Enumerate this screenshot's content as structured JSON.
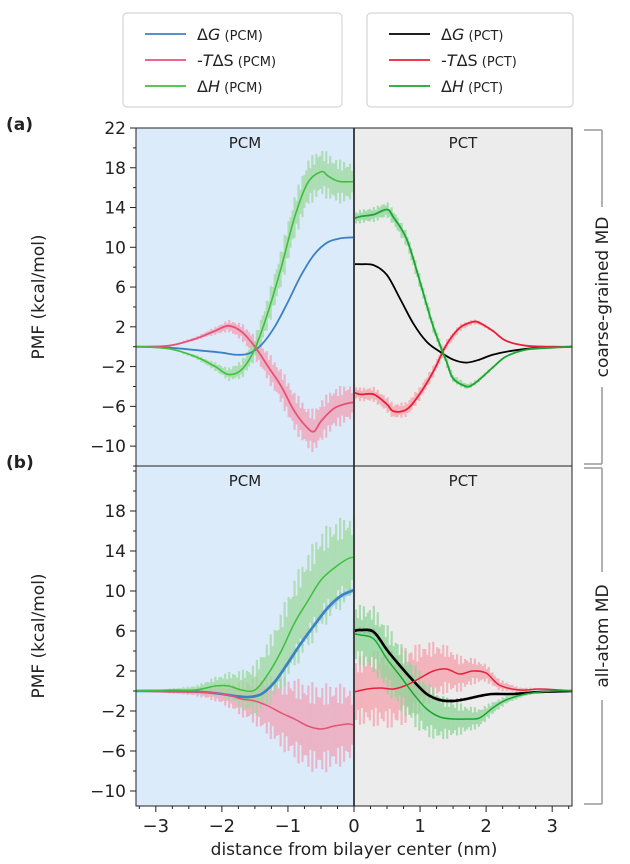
{
  "legends": [
    {
      "entries": [
        {
          "pre": "Δ",
          "sym": "G",
          "tag": " (PCM)",
          "color": "#3b82c4"
        },
        {
          "pre": "-",
          "sym": "T",
          "post": "ΔS",
          "tag": " (PCM)",
          "color": "#e8507a"
        },
        {
          "pre": "Δ",
          "sym": "H",
          "tag": " (PCM)",
          "color": "#3fbf3f"
        }
      ]
    },
    {
      "entries": [
        {
          "pre": "Δ",
          "sym": "G",
          "tag": " (PCT)",
          "color": "#000000"
        },
        {
          "pre": "-",
          "sym": "T",
          "post": "ΔS",
          "tag": " (PCT)",
          "color": "#e8203a"
        },
        {
          "pre": "Δ",
          "sym": "H",
          "tag": " (PCT)",
          "color": "#1aa631"
        }
      ]
    }
  ],
  "chart_data": [
    {
      "type": "line",
      "panel_label": "(a)",
      "right_label": "coarse-grained MD",
      "left_region_label": "PCM",
      "right_region_label": "PCT",
      "left_region_color": "#dcebfa",
      "right_region_color": "#ececec",
      "ylabel": "PMF (kcal/mol)",
      "ylim": [
        -12,
        22
      ],
      "yticks": [
        -10,
        -6,
        -2,
        2,
        6,
        10,
        14,
        18,
        22
      ],
      "xlim": [
        -3.3,
        3.3
      ],
      "series": [
        {
          "id": "dG_PCM",
          "color": "#3b82c4",
          "width": 1.8,
          "x": [
            -3.3,
            -2.8,
            -2.3,
            -2.0,
            -1.8,
            -1.6,
            -1.4,
            -1.2,
            -1.0,
            -0.8,
            -0.6,
            -0.4,
            -0.2,
            0.0
          ],
          "y": [
            0,
            -0.1,
            -0.4,
            -0.6,
            -0.8,
            -0.7,
            0.2,
            2.0,
            4.5,
            7.2,
            9.3,
            10.5,
            10.9,
            11.0
          ]
        },
        {
          "id": "mTdS_PCM",
          "color": "#e8507a",
          "width": 1.8,
          "err": 2.2,
          "errcolor": "#f2a3b6",
          "x": [
            -3.3,
            -2.8,
            -2.4,
            -2.1,
            -1.9,
            -1.7,
            -1.5,
            -1.3,
            -1.1,
            -0.9,
            -0.7,
            -0.6,
            -0.5,
            -0.3,
            -0.1,
            0.0
          ],
          "y": [
            0,
            0.1,
            0.8,
            1.6,
            2.1,
            1.5,
            0.0,
            -2.0,
            -4.0,
            -6.5,
            -8.2,
            -8.5,
            -7.5,
            -6.2,
            -5.7,
            -5.6
          ]
        },
        {
          "id": "dH_PCM",
          "color": "#3fbf3f",
          "width": 1.6,
          "err": 2.4,
          "errcolor": "#9ed99e",
          "x": [
            -3.3,
            -2.8,
            -2.4,
            -2.1,
            -1.9,
            -1.7,
            -1.5,
            -1.3,
            -1.1,
            -0.9,
            -0.7,
            -0.5,
            -0.4,
            -0.3,
            -0.2,
            0.0
          ],
          "y": [
            0,
            -0.2,
            -1.0,
            -2.0,
            -2.8,
            -2.3,
            -0.2,
            3.5,
            8.0,
            13.0,
            16.5,
            17.6,
            17.2,
            16.8,
            16.6,
            16.6
          ]
        },
        {
          "id": "dG_PCT",
          "color": "#000000",
          "width": 1.8,
          "x": [
            0.0,
            0.1,
            0.3,
            0.5,
            0.7,
            0.9,
            1.1,
            1.3,
            1.5,
            1.7,
            1.9,
            2.1,
            2.4,
            2.8,
            3.3
          ],
          "y": [
            8.3,
            8.3,
            8.2,
            7.2,
            4.8,
            2.3,
            0.5,
            -0.5,
            -1.3,
            -1.6,
            -1.3,
            -0.8,
            -0.4,
            -0.1,
            0
          ]
        },
        {
          "id": "mTdS_PCT",
          "color": "#e8203a",
          "width": 1.8,
          "err": 0.8,
          "errcolor": "#f4a3ae",
          "x": [
            0.0,
            0.1,
            0.3,
            0.5,
            0.6,
            0.8,
            1.0,
            1.2,
            1.4,
            1.6,
            1.8,
            1.9,
            2.1,
            2.3,
            2.6,
            3.0,
            3.3
          ],
          "y": [
            -4.6,
            -4.8,
            -4.8,
            -5.8,
            -6.5,
            -6.3,
            -4.7,
            -2.5,
            0.2,
            1.9,
            2.5,
            2.4,
            1.6,
            0.6,
            0.1,
            0,
            0
          ]
        },
        {
          "id": "dH_PCT",
          "color": "#1aa631",
          "width": 1.8,
          "err": 0.8,
          "errcolor": "#8fd69a",
          "x": [
            0.0,
            0.1,
            0.3,
            0.5,
            0.6,
            0.8,
            1.0,
            1.2,
            1.4,
            1.5,
            1.7,
            1.8,
            1.9,
            2.1,
            2.3,
            2.6,
            3.0,
            3.3
          ],
          "y": [
            12.9,
            13.1,
            13.3,
            13.8,
            13.0,
            10.8,
            6.5,
            2.0,
            -1.5,
            -3.2,
            -4.0,
            -3.8,
            -3.3,
            -2.1,
            -1.0,
            -0.3,
            -0.1,
            0
          ]
        }
      ]
    },
    {
      "type": "line",
      "panel_label": "(b)",
      "right_label": "all-atom MD",
      "left_region_label": "PCM",
      "right_region_label": "PCT",
      "left_region_color": "#dcebfa",
      "right_region_color": "#ececec",
      "ylabel": "PMF (kcal/mol)",
      "ylim": [
        -11.5,
        22.5
      ],
      "yticks": [
        -10,
        -6,
        -2,
        2,
        6,
        10,
        14,
        18
      ],
      "xlim": [
        -3.3,
        3.3
      ],
      "xticks": [
        -3,
        -2,
        -1,
        0,
        1,
        2,
        3
      ],
      "xlabel": "distance from bilayer center (nm)",
      "series": [
        {
          "id": "dG_PCM",
          "color": "#3b82c4",
          "width": 2.6,
          "err": 0.5,
          "errcolor": "#9cc3e8",
          "x": [
            -3.3,
            -2.8,
            -2.3,
            -2.0,
            -1.8,
            -1.6,
            -1.4,
            -1.2,
            -1.0,
            -0.8,
            -0.6,
            -0.4,
            -0.2,
            0.0
          ],
          "y": [
            0,
            0,
            -0.1,
            -0.3,
            -0.5,
            -0.6,
            -0.3,
            0.9,
            2.8,
            4.8,
            6.6,
            8.3,
            9.5,
            10.1
          ]
        },
        {
          "id": "mTdS_PCM",
          "color": "#e8507a",
          "width": 1.5,
          "err": 4.5,
          "errcolor": "#f2a3b6",
          "x": [
            -3.3,
            -2.8,
            -2.4,
            -2.1,
            -1.9,
            -1.7,
            -1.5,
            -1.3,
            -1.1,
            -0.9,
            -0.7,
            -0.5,
            -0.3,
            -0.1,
            0.0
          ],
          "y": [
            0,
            -0.1,
            -0.1,
            -0.2,
            -0.4,
            -0.8,
            -1.0,
            -1.5,
            -2.2,
            -2.8,
            -3.5,
            -3.8,
            -3.5,
            -3.3,
            -3.4
          ]
        },
        {
          "id": "dH_PCM",
          "color": "#3fbf3f",
          "width": 1.5,
          "err": 5.0,
          "errcolor": "#9ed99e",
          "x": [
            -3.3,
            -2.8,
            -2.4,
            -2.1,
            -1.9,
            -1.7,
            -1.5,
            -1.3,
            -1.1,
            -0.9,
            -0.7,
            -0.5,
            -0.3,
            -0.1,
            0.0
          ],
          "y": [
            0,
            0.1,
            0.1,
            0.5,
            0.5,
            0.1,
            0.1,
            1.7,
            4.0,
            6.8,
            9.0,
            11.1,
            12.3,
            13.2,
            13.4
          ]
        },
        {
          "id": "dG_PCT",
          "color": "#000000",
          "width": 2.6,
          "err": 0.4,
          "errcolor": "#888888",
          "x": [
            0.0,
            0.1,
            0.3,
            0.5,
            0.7,
            0.9,
            1.1,
            1.3,
            1.5,
            1.7,
            1.9,
            2.1,
            2.4,
            2.8,
            3.3
          ],
          "y": [
            6.0,
            6.1,
            5.9,
            4.1,
            2.5,
            1.0,
            -0.3,
            -0.9,
            -1.0,
            -0.8,
            -0.5,
            -0.3,
            -0.3,
            -0.1,
            0
          ]
        },
        {
          "id": "mTdS_PCT",
          "color": "#e8203a",
          "width": 1.5,
          "err": 4.0,
          "errcolor": "#f4a3ae",
          "x": [
            0.0,
            0.2,
            0.4,
            0.6,
            0.8,
            1.0,
            1.2,
            1.4,
            1.6,
            1.8,
            2.0,
            2.2,
            2.5,
            2.8,
            3.1,
            3.3
          ],
          "y": [
            -0.1,
            0.2,
            0.3,
            0.2,
            0.6,
            1.3,
            2.0,
            2.2,
            1.7,
            2.0,
            1.8,
            0.6,
            0.1,
            0.2,
            0.1,
            0
          ]
        },
        {
          "id": "dH_PCT",
          "color": "#1aa631",
          "width": 1.5,
          "err": 3.5,
          "errcolor": "#8fd69a",
          "x": [
            0.0,
            0.1,
            0.3,
            0.5,
            0.7,
            0.9,
            1.1,
            1.3,
            1.5,
            1.7,
            1.9,
            2.1,
            2.3,
            2.6,
            3.0,
            3.3
          ],
          "y": [
            5.7,
            5.6,
            5.2,
            3.2,
            1.5,
            -0.3,
            -1.8,
            -2.6,
            -2.8,
            -2.8,
            -2.7,
            -1.7,
            -0.9,
            -0.3,
            0,
            0
          ]
        }
      ]
    }
  ]
}
